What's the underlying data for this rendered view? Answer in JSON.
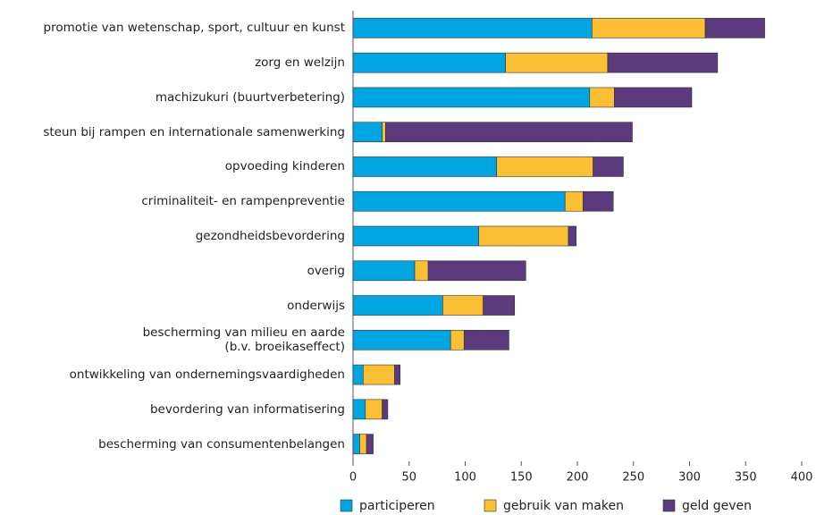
{
  "chart_data": {
    "type": "stacked-barh",
    "categories": [
      "promotie van wetenschap, sport, cultuur en kunst",
      "zorg en welzijn",
      "machizukuri (buurtverbetering)",
      "steun bij rampen en internationale samenwerking",
      "opvoeding kinderen",
      "criminaliteit- en rampenpreventie",
      "gezondheidsbevordering",
      "overig",
      "onderwijs",
      "bescherming van milieu en aarde\n(b.v. broeikaseffect)",
      "ontwikkeling van ondernemingsvaardigheden",
      "bevordering van informatisering",
      "bescherming van consumentenbelangen"
    ],
    "series": [
      {
        "name": "participeren",
        "color": "#00a6e2",
        "values": [
          213,
          136,
          211,
          26,
          128,
          189,
          112,
          55,
          80,
          87,
          9,
          11,
          6
        ]
      },
      {
        "name": "gebruik van maken",
        "color": "#fbbf33",
        "values": [
          101,
          91,
          22,
          3,
          86,
          16,
          80,
          12,
          36,
          12,
          28,
          15,
          6
        ]
      },
      {
        "name": "geld geven",
        "color": "#5b3a7e",
        "values": [
          53,
          98,
          69,
          220,
          27,
          27,
          7,
          87,
          28,
          40,
          5,
          5,
          6
        ]
      }
    ],
    "xlim": [
      0,
      400
    ],
    "xticks": [
      0,
      50,
      100,
      150,
      200,
      250,
      300,
      350,
      400
    ],
    "legend": "bottom"
  }
}
